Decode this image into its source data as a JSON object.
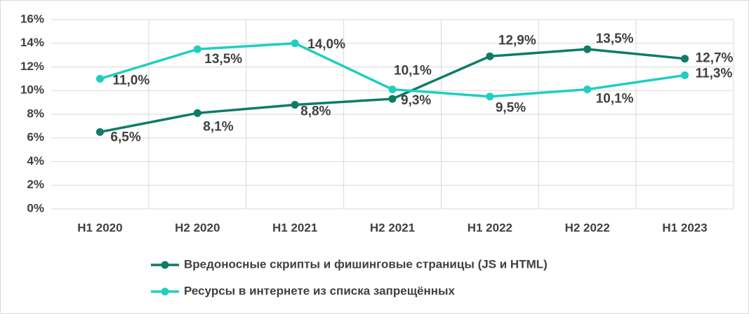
{
  "chart_data": {
    "type": "line",
    "categories": [
      "H1 2020",
      "H2 2020",
      "H1 2021",
      "H2 2021",
      "H1 2022",
      "H2 2022",
      "H1 2023"
    ],
    "series": [
      {
        "name": "Вредоносные скрипты и фишинговые страницы (JS и HTML)",
        "color": "#0e7c68",
        "values": [
          6.5,
          8.1,
          8.8,
          9.3,
          12.9,
          13.5,
          12.7
        ],
        "value_labels": [
          "6,5%",
          "8,1%",
          "8,8%",
          "9,3%",
          "12,9%",
          "13,5%",
          "12,7%"
        ]
      },
      {
        "name": "Ресурсы в интернете из списка запрещённых",
        "color": "#1ecfc1",
        "values": [
          11.0,
          13.5,
          14.0,
          10.1,
          9.5,
          10.1,
          11.3
        ],
        "value_labels": [
          "11,0%",
          "13,5%",
          "14,0%",
          "10,1%",
          "9,5%",
          "10,1%",
          "11,3%"
        ]
      }
    ],
    "ylim": [
      0,
      16
    ],
    "yticks": [
      {
        "value": 0,
        "label": "0%"
      },
      {
        "value": 2,
        "label": "2%"
      },
      {
        "value": 4,
        "label": "4%"
      },
      {
        "value": 6,
        "label": "6%"
      },
      {
        "value": 8,
        "label": "8%"
      },
      {
        "value": 10,
        "label": "10%"
      },
      {
        "value": 12,
        "label": "12%"
      },
      {
        "value": 14,
        "label": "14%"
      },
      {
        "value": 16,
        "label": "16%"
      }
    ],
    "grid": true
  }
}
